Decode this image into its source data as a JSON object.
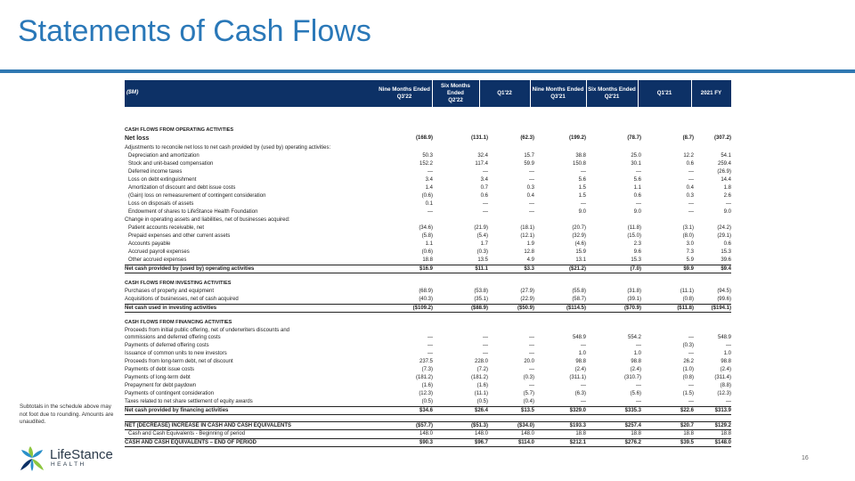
{
  "title": "Statements of Cash Flows",
  "table": {
    "unit_label": "($M)",
    "columns": [
      [
        "Nine Months Ended",
        "Q3'22"
      ],
      [
        "Six Months Ended",
        "Q2'22"
      ],
      [
        "Q1'22"
      ],
      [
        "Nine Months Ended",
        "Q3'21"
      ],
      [
        "Six Months Ended",
        "Q2'21"
      ],
      [
        "Q1'21"
      ],
      [
        "2021 FY"
      ]
    ],
    "rows": [
      {
        "k": "sec",
        "label": "CASH FLOWS FROM OPERATING ACTIVITIES"
      },
      {
        "k": "big",
        "label": "Net loss",
        "v": [
          "(168.9)",
          "(131.1)",
          "(62.3)",
          "(199.2)",
          "(78.7)",
          "(8.7)",
          "(307.2)"
        ]
      },
      {
        "k": "plain",
        "label": "Adjustments to reconcile net loss to net cash provided by (used by) operating activities:"
      },
      {
        "k": "ind",
        "label": "Depreciation and amortization",
        "v": [
          "50.3",
          "32.4",
          "15.7",
          "38.8",
          "25.0",
          "12.2",
          "54.1"
        ]
      },
      {
        "k": "ind",
        "label": "Stock and unit-based compensation",
        "v": [
          "152.2",
          "117.4",
          "59.9",
          "150.8",
          "30.1",
          "0.6",
          "259.4"
        ]
      },
      {
        "k": "ind",
        "label": "Deferred income taxes",
        "v": [
          "—",
          "—",
          "—",
          "—",
          "—",
          "—",
          "(26.9)"
        ]
      },
      {
        "k": "ind",
        "label": "Loss on debt extinguishment",
        "v": [
          "3.4",
          "3.4",
          "—",
          "5.6",
          "5.6",
          "—",
          "14.4"
        ]
      },
      {
        "k": "ind",
        "label": "Amortization of discount and debt issue costs",
        "v": [
          "1.4",
          "0.7",
          "0.3",
          "1.5",
          "1.1",
          "0.4",
          "1.8"
        ]
      },
      {
        "k": "ind",
        "label": "(Gain) loss on remeasurement of contingent consideration",
        "v": [
          "(0.6)",
          "0.6",
          "0.4",
          "1.5",
          "0.6",
          "0.3",
          "2.6"
        ]
      },
      {
        "k": "ind",
        "label": "Loss on disposals of assets",
        "v": [
          "0.1",
          "—",
          "—",
          "—",
          "—",
          "—",
          "—"
        ]
      },
      {
        "k": "ind",
        "label": "Endowment of shares to LifeStance Health Foundation",
        "v": [
          "—",
          "—",
          "—",
          "9.0",
          "9.0",
          "—",
          "9.0"
        ]
      },
      {
        "k": "plain",
        "label": "Change in operating assets and liabilities, net of businesses acquired:"
      },
      {
        "k": "ind",
        "label": "Patient accounts receivable, net",
        "v": [
          "(34.6)",
          "(21.9)",
          "(18.1)",
          "(20.7)",
          "(11.8)",
          "(3.1)",
          "(24.2)"
        ]
      },
      {
        "k": "ind",
        "label": "Prepaid expenses and other current assets",
        "v": [
          "(5.8)",
          "(5.4)",
          "(12.1)",
          "(32.9)",
          "(15.0)",
          "(8.0)",
          "(29.1)"
        ]
      },
      {
        "k": "ind",
        "label": "Accounts payable",
        "v": [
          "1.1",
          "1.7",
          "1.9",
          "(4.6)",
          "2.3",
          "3.0",
          "0.6"
        ]
      },
      {
        "k": "ind",
        "label": "Accrued payroll expenses",
        "v": [
          "(0.6)",
          "(0.3)",
          "12.8",
          "15.9",
          "9.6",
          "7.3",
          "15.3"
        ]
      },
      {
        "k": "ind",
        "label": "Other accrued expenses",
        "v": [
          "18.8",
          "13.5",
          "4.9",
          "13.1",
          "15.3",
          "5.9",
          "39.6"
        ]
      },
      {
        "k": "tot",
        "label": "Net cash provided by (used by) operating activities",
        "v": [
          "$16.9",
          "$11.1",
          "$3.3",
          "($21.2)",
          "(7.0)",
          "$9.9",
          "$9.4"
        ]
      },
      {
        "k": "gap"
      },
      {
        "k": "sec",
        "label": "CASH FLOWS FROM INVESTING ACTIVITIES"
      },
      {
        "k": "plain",
        "label": "Purchases of property and equipment",
        "v": [
          "(68.9)",
          "(53.8)",
          "(27.9)",
          "(55.8)",
          "(31.8)",
          "(11.1)",
          "(94.5)"
        ]
      },
      {
        "k": "plain",
        "label": "Acquisitions of businesses, net of cash acquired",
        "v": [
          "(40.3)",
          "(35.1)",
          "(22.9)",
          "(58.7)",
          "(39.1)",
          "(0.8)",
          "(99.6)"
        ]
      },
      {
        "k": "tot",
        "label": "Net cash used in investing activities",
        "v": [
          "($109.2)",
          "($88.9)",
          "($50.9)",
          "($114.5)",
          "($70.9)",
          "($11.8)",
          "($194.1)"
        ]
      },
      {
        "k": "gap"
      },
      {
        "k": "sec",
        "label": "CASH FLOWS FROM FINANCING ACTIVITIES"
      },
      {
        "k": "two",
        "label": "Proceeds from initial public offering, net of underwriters discounts and commissions and deferred offering costs",
        "v": [
          "—",
          "—",
          "—",
          "548.9",
          "554.2",
          "—",
          "548.9"
        ]
      },
      {
        "k": "plain",
        "label": "Payments of deferred offering costs",
        "v": [
          "—",
          "—",
          "—",
          "—",
          "—",
          "(0.3)",
          "—"
        ]
      },
      {
        "k": "plain",
        "label": "Issuance of common units to new investors",
        "v": [
          "—",
          "—",
          "—",
          "1.0",
          "1.0",
          "—",
          "1.0"
        ]
      },
      {
        "k": "plain",
        "label": "Proceeds from long-term debt, net of discount",
        "v": [
          "237.5",
          "228.0",
          "20.0",
          "98.8",
          "98.8",
          "26.2",
          "98.8"
        ]
      },
      {
        "k": "plain",
        "label": "Payments of debt issue costs",
        "v": [
          "(7.3)",
          "(7.2)",
          "—",
          "(2.4)",
          "(2.4)",
          "(1.0)",
          "(2.4)"
        ]
      },
      {
        "k": "plain",
        "label": "Payments of long-term debt",
        "v": [
          "(181.2)",
          "(181.2)",
          "(0.3)",
          "(311.1)",
          "(310.7)",
          "(0.8)",
          "(311.4)"
        ]
      },
      {
        "k": "plain",
        "label": "Prepayment for debt paydown",
        "v": [
          "(1.6)",
          "(1.6)",
          "—",
          "—",
          "—",
          "—",
          "(8.8)"
        ]
      },
      {
        "k": "plain",
        "label": "Payments of contingent consideration",
        "v": [
          "(12.3)",
          "(11.1)",
          "(5.7)",
          "(6.3)",
          "(5.6)",
          "(1.5)",
          "(12.3)"
        ]
      },
      {
        "k": "plain",
        "label": "Taxes related to net share settlement of equity awards",
        "v": [
          "(0.5)",
          "(0.5)",
          "(0.4)",
          "—",
          "—",
          "—",
          "—"
        ]
      },
      {
        "k": "tot",
        "label": "Net cash provided by financing activities",
        "v": [
          "$34.6",
          "$26.4",
          "$13.5",
          "$329.0",
          "$335.3",
          "$22.6",
          "$313.9"
        ]
      },
      {
        "k": "gap"
      },
      {
        "k": "tot",
        "label": "NET (DECREASE) INCREASE IN CASH AND CASH EQUIVALENTS",
        "v": [
          "($57.7)",
          "($51.3)",
          "($34.0)",
          "$193.3",
          "$257.4",
          "$20.7",
          "$129.2"
        ]
      },
      {
        "k": "ind",
        "label": "Cash and Cash Equivalents - Beginning of period",
        "v": [
          "148.0",
          "148.0",
          "148.0",
          "18.8",
          "18.8",
          "18.8",
          "18.8"
        ]
      },
      {
        "k": "tot",
        "label": "CASH AND CASH EQUIVALENTS – END OF PERIOD",
        "v": [
          "$90.3",
          "$96.7",
          "$114.0",
          "$212.1",
          "$276.2",
          "$39.5",
          "$148.0"
        ]
      }
    ]
  },
  "footnote": "Subtotals in the schedule above may not foot due to rounding. Amounts are unaudited.",
  "logo": {
    "name": "LifeStance",
    "sub": "HEALTH",
    "colors": [
      "#8dc63f",
      "#2a8fc9",
      "#0d3166"
    ]
  },
  "page_number": "16"
}
